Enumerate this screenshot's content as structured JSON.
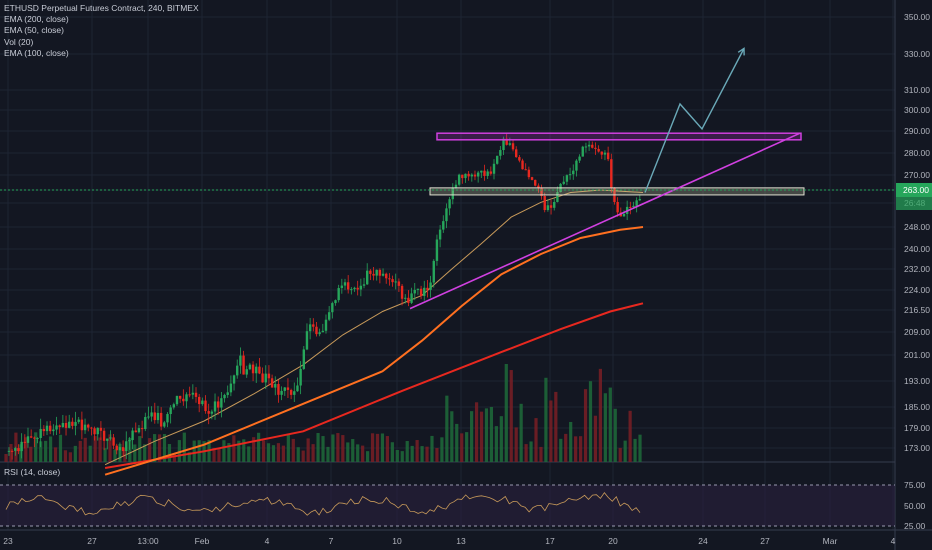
{
  "chart_data": {
    "type": "candlestick",
    "title": "ETHUSD Perpetual Futures Contract, 240, BITMEX",
    "indicators": [
      "EMA (200, close)",
      "EMA (50, close)",
      "Vol (20)",
      "EMA (100, close)"
    ],
    "rsi_label": "RSI (14, close)",
    "y_ticks": [
      "350.00",
      "330.00",
      "310.00",
      "300.00",
      "290.00",
      "280.00",
      "270.00",
      "263.00",
      "26:48",
      "248.00",
      "240.00",
      "232.00",
      "224.00",
      "216.50",
      "209.00",
      "201.00",
      "193.00",
      "185.00",
      "179.00",
      "173.00"
    ],
    "rsi_ticks": [
      "75.00",
      "50.00",
      "25.00"
    ],
    "x_ticks": [
      "23",
      "27",
      "13:00",
      "Feb",
      "4",
      "7",
      "10",
      "13",
      "17",
      "20",
      "24",
      "27",
      "Mar",
      "4"
    ],
    "current_price_label": "263.00",
    "price_path": [
      [
        0,
        172
      ],
      [
        12,
        172
      ],
      [
        20,
        176
      ],
      [
        28,
        175
      ],
      [
        40,
        179
      ],
      [
        52,
        179
      ],
      [
        64,
        181
      ],
      [
        76,
        180
      ],
      [
        88,
        178
      ],
      [
        98,
        177
      ],
      [
        108,
        175
      ],
      [
        114,
        173
      ],
      [
        120,
        174
      ],
      [
        128,
        178
      ],
      [
        136,
        180
      ],
      [
        144,
        182
      ],
      [
        152,
        182
      ],
      [
        160,
        180
      ],
      [
        166,
        183
      ],
      [
        172,
        190
      ],
      [
        178,
        186
      ],
      [
        186,
        189
      ],
      [
        196,
        186
      ],
      [
        206,
        184
      ],
      [
        216,
        186
      ],
      [
        224,
        190
      ],
      [
        230,
        195
      ],
      [
        236,
        200
      ],
      [
        240,
        196
      ],
      [
        246,
        198
      ],
      [
        252,
        196
      ],
      [
        258,
        194
      ],
      [
        264,
        194
      ],
      [
        270,
        192
      ],
      [
        276,
        190
      ],
      [
        284,
        190
      ],
      [
        290,
        190
      ],
      [
        296,
        193
      ],
      [
        300,
        204
      ],
      [
        306,
        210
      ],
      [
        312,
        210
      ],
      [
        318,
        208
      ],
      [
        324,
        214
      ],
      [
        330,
        218
      ],
      [
        336,
        224
      ],
      [
        342,
        226
      ],
      [
        348,
        225
      ],
      [
        352,
        226
      ],
      [
        358,
        224
      ],
      [
        364,
        230
      ],
      [
        370,
        228
      ],
      [
        376,
        231
      ],
      [
        382,
        231
      ],
      [
        388,
        227
      ],
      [
        394,
        226
      ],
      [
        400,
        222
      ],
      [
        406,
        220
      ],
      [
        412,
        224
      ],
      [
        418,
        222
      ],
      [
        424,
        224
      ],
      [
        428,
        226
      ],
      [
        432,
        236
      ],
      [
        436,
        245
      ],
      [
        440,
        246
      ],
      [
        444,
        255
      ],
      [
        448,
        260
      ],
      [
        452,
        265
      ],
      [
        456,
        268
      ],
      [
        460,
        270
      ],
      [
        464,
        272
      ],
      [
        468,
        270
      ],
      [
        472,
        268
      ],
      [
        478,
        272
      ],
      [
        484,
        270
      ],
      [
        488,
        270
      ],
      [
        492,
        276
      ],
      [
        498,
        280
      ],
      [
        502,
        286
      ],
      [
        506,
        285
      ],
      [
        510,
        282
      ],
      [
        514,
        279
      ],
      [
        518,
        276
      ],
      [
        522,
        272
      ],
      [
        528,
        270
      ],
      [
        532,
        266
      ],
      [
        536,
        264
      ],
      [
        540,
        260
      ],
      [
        544,
        256
      ],
      [
        548,
        256
      ],
      [
        552,
        258
      ],
      [
        556,
        260
      ],
      [
        560,
        266
      ],
      [
        566,
        270
      ],
      [
        572,
        272
      ],
      [
        578,
        278
      ],
      [
        582,
        282
      ],
      [
        588,
        284
      ],
      [
        592,
        281
      ],
      [
        598,
        282
      ],
      [
        604,
        280
      ],
      [
        608,
        278
      ],
      [
        612,
        260
      ],
      [
        616,
        256
      ],
      [
        620,
        252
      ],
      [
        624,
        254
      ],
      [
        628,
        255
      ],
      [
        632,
        256
      ],
      [
        636,
        259
      ],
      [
        642,
        261
      ]
    ],
    "series": [
      {
        "name": "EMA (200, close)",
        "color": "#e8281f",
        "values": [
          [
            100,
            167
          ],
          [
            200,
            172
          ],
          [
            300,
            178
          ],
          [
            400,
            190
          ],
          [
            500,
            202
          ],
          [
            560,
            210
          ],
          [
            610,
            216
          ],
          [
            643,
            219
          ]
        ]
      },
      {
        "name": "EMA (100, close)",
        "color": "#ff7020",
        "values": [
          [
            100,
            165
          ],
          [
            200,
            174
          ],
          [
            300,
            186
          ],
          [
            380,
            196
          ],
          [
            420,
            206
          ],
          [
            460,
            218
          ],
          [
            500,
            230
          ],
          [
            540,
            238
          ],
          [
            580,
            244
          ],
          [
            620,
            247
          ],
          [
            643,
            248
          ]
        ]
      },
      {
        "name": "EMA (50, close)",
        "color": "#c89a5a",
        "values": [
          [
            100,
            168
          ],
          [
            150,
            175
          ],
          [
            200,
            181
          ],
          [
            250,
            189
          ],
          [
            300,
            198
          ],
          [
            340,
            208
          ],
          [
            380,
            216
          ],
          [
            420,
            222
          ],
          [
            450,
            232
          ],
          [
            480,
            242
          ],
          [
            510,
            252
          ],
          [
            540,
            258
          ],
          [
            570,
            262
          ],
          [
            600,
            263
          ],
          [
            643,
            262
          ]
        ]
      }
    ],
    "annotations": {
      "resistance_zone": [
        286,
        289
      ],
      "support_zone": [
        261,
        264
      ],
      "trendline": [
        [
          410,
          217
        ],
        [
          800,
          289
        ]
      ],
      "projection": [
        [
          645,
          262
        ],
        [
          680,
          303
        ],
        [
          702,
          291
        ],
        [
          744,
          333
        ]
      ]
    }
  }
}
